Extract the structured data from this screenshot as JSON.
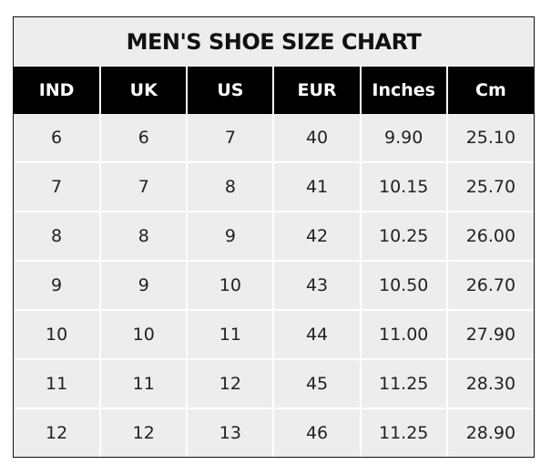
{
  "chart_data": {
    "type": "table",
    "title": "MEN'S SHOE SIZE CHART",
    "columns": [
      "IND",
      "UK",
      "US",
      "EUR",
      "Inches",
      "Cm"
    ],
    "rows": [
      [
        "6",
        "6",
        "7",
        "40",
        "9.90",
        "25.10"
      ],
      [
        "7",
        "7",
        "8",
        "41",
        "10.15",
        "25.70"
      ],
      [
        "8",
        "8",
        "9",
        "42",
        "10.25",
        "26.00"
      ],
      [
        "9",
        "9",
        "10",
        "43",
        "10.50",
        "26.70"
      ],
      [
        "10",
        "10",
        "11",
        "44",
        "11.00",
        "27.90"
      ],
      [
        "11",
        "11",
        "12",
        "45",
        "11.25",
        "28.30"
      ],
      [
        "12",
        "12",
        "13",
        "46",
        "11.25",
        "28.90"
      ]
    ],
    "colors": {
      "header_bg": "#000000",
      "header_text": "#ffffff",
      "cell_bg": "#ededed",
      "grid": "#ffffff"
    }
  }
}
